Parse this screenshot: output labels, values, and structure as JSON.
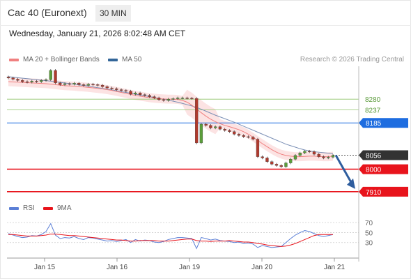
{
  "header": {
    "title": "Cac 40 (Euronext)",
    "timeframe": "30 MIN"
  },
  "datetime": "Wednesday, January 21, 2026 8:02:48 AM CET",
  "legend": {
    "ma20_label": "MA 20 + Bollinger Bands",
    "ma50_label": "MA 50",
    "ma20_color": "#f08080",
    "ma50_color": "#336699"
  },
  "credit": "Research © 2026 Trading Central",
  "rsi_legend": {
    "rsi_label": "RSI",
    "ma9_label": "9MA",
    "rsi_color": "#5b7fd6",
    "ma9_color": "#e8141c"
  },
  "levels": [
    {
      "value": 8280,
      "label": "8280",
      "kind": "resistance-soft",
      "color": "#8fc46a"
    },
    {
      "value": 8237,
      "label": "8237",
      "kind": "resistance-soft",
      "color": "#8fc46a"
    },
    {
      "value": 8185,
      "label": "8185",
      "kind": "resistance",
      "color": "#1e6de0"
    },
    {
      "value": 8056,
      "label": "8056",
      "kind": "last-price",
      "color": "#333333"
    },
    {
      "value": 8000,
      "label": "8000",
      "kind": "support",
      "color": "#e8141c"
    },
    {
      "value": 7910,
      "label": "7910",
      "kind": "target",
      "color": "#e8141c"
    }
  ],
  "chart_data": {
    "type": "candlestick",
    "x_axis_labels": [
      "Jan 15",
      "Jan 16",
      "Jan 19",
      "Jan 20",
      "Jan 21"
    ],
    "ylim": [
      7890,
      8420
    ],
    "last_price": 8056,
    "candles_close": [
      8365,
      8360,
      8355,
      8350,
      8348,
      8352,
      8350,
      8355,
      8358,
      8395,
      8345,
      8338,
      8342,
      8340,
      8344,
      8338,
      8335,
      8340,
      8338,
      8336,
      8330,
      8325,
      8322,
      8318,
      8315,
      8312,
      8300,
      8305,
      8298,
      8295,
      8290,
      8285,
      8278,
      8275,
      8280,
      8282,
      8285,
      8285,
      8284,
      8283,
      8105,
      8180,
      8175,
      8165,
      8170,
      8160,
      8155,
      8150,
      8140,
      8135,
      8130,
      8128,
      8120,
      8050,
      8045,
      8030,
      8020,
      8015,
      8010,
      8025,
      8040,
      8055,
      8065,
      8072,
      8070,
      8060,
      8050,
      8045,
      8048,
      8055
    ],
    "ma20": [
      8350,
      8349,
      8348,
      8347,
      8346,
      8345,
      8344,
      8343,
      8342,
      8340,
      8338,
      8336,
      8334,
      8333,
      8332,
      8330,
      8329,
      8327,
      8325,
      8323,
      8321,
      8318,
      8315,
      8311,
      8307,
      8303,
      8299,
      8295,
      8292,
      8289,
      8286,
      8284,
      8282,
      8281,
      8280,
      8280,
      8279,
      8275,
      8268,
      8256,
      8240,
      8226,
      8212,
      8200,
      8190,
      8182,
      8175,
      8170,
      8164,
      8158,
      8150,
      8140,
      8128,
      8115,
      8102,
      8090,
      8078,
      8068,
      8060,
      8055,
      8052,
      8050,
      8050,
      8051,
      8052,
      8052,
      8051,
      8050,
      8050,
      8052
    ],
    "ma50": [
      8370,
      8368,
      8366,
      8364,
      8362,
      8360,
      8358,
      8356,
      8354,
      8352,
      8350,
      8347,
      8345,
      8342,
      8340,
      8337,
      8335,
      8332,
      8329,
      8326,
      8323,
      8320,
      8317,
      8314,
      8310,
      8307,
      8304,
      8300,
      8297,
      8294,
      8290,
      8287,
      8283,
      8280,
      8276,
      8272,
      8268,
      8263,
      8258,
      8253,
      8247,
      8240,
      8232,
      8224,
      8216,
      8209,
      8202,
      8195,
      8188,
      8180,
      8172,
      8164,
      8156,
      8148,
      8140,
      8132,
      8124,
      8116,
      8108,
      8100,
      8094,
      8088,
      8082,
      8077,
      8073,
      8070,
      8068,
      8066,
      8064,
      8062
    ],
    "rsi_yticks": [
      70,
      50,
      30
    ],
    "rsi_ylim": [
      10,
      80
    ],
    "rsi": [
      48,
      45,
      42,
      40,
      41,
      44,
      43,
      46,
      52,
      68,
      45,
      38,
      40,
      39,
      42,
      38,
      36,
      40,
      39,
      37,
      35,
      33,
      34,
      32,
      34,
      36,
      30,
      36,
      33,
      35,
      34,
      31,
      30,
      32,
      36,
      38,
      40,
      40,
      39,
      38,
      18,
      40,
      38,
      35,
      37,
      34,
      33,
      32,
      30,
      31,
      28,
      29,
      27,
      20,
      24,
      22,
      20,
      21,
      22,
      30,
      38,
      45,
      50,
      54,
      52,
      48,
      44,
      42,
      44,
      46
    ],
    "rsi_ma9": [
      46,
      46,
      45,
      44,
      43,
      43,
      43,
      44,
      45,
      47,
      47,
      46,
      45,
      44,
      44,
      43,
      42,
      41,
      40,
      39,
      38,
      37,
      36,
      35,
      35,
      34,
      33,
      33,
      34,
      34,
      34,
      34,
      33,
      33,
      33,
      34,
      35,
      36,
      37,
      37,
      34,
      33,
      33,
      32,
      33,
      33,
      33,
      34,
      33,
      32,
      31,
      31,
      30,
      28,
      27,
      25,
      24,
      23,
      22,
      23,
      25,
      28,
      32,
      36,
      40,
      44,
      46,
      46,
      46,
      46
    ]
  }
}
